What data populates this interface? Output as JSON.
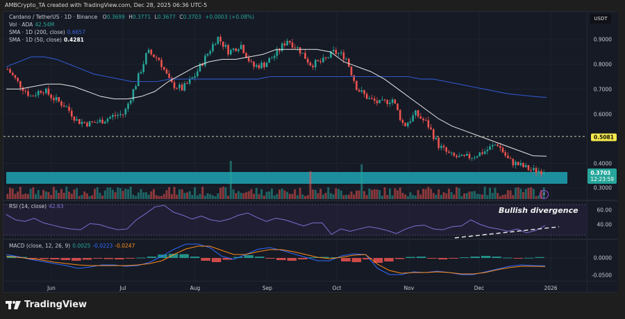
{
  "header": {
    "created_by": "AMBCrypto_TA created with TradingView.com, Dec 28, 2025 06:36 UTC-5"
  },
  "symbol": {
    "title": "Cardano / TetherUS · 1D · Binance",
    "open_label": "O",
    "open": "0.3699",
    "high_label": "H",
    "high": "0.3771",
    "low_label": "L",
    "low": "0.3677",
    "close_label": "C",
    "close": "0.3703",
    "change": "+0.0003 (+0.08%)"
  },
  "indicators": {
    "volume": {
      "label": "Vol · ADA",
      "value": "42.54M"
    },
    "sma200": {
      "label": "SMA · 1D (200, close)",
      "value": "0.6657",
      "color": "#2f57c9"
    },
    "sma50": {
      "label": "SMA · 1D (50, close)",
      "value": "0.4281",
      "color": "#e8e8e8"
    },
    "rsi": {
      "label": "RSI (14, close)",
      "value": "42.63",
      "color": "#7e6fd3"
    },
    "macd": {
      "label": "MACD (close, 12, 26, 9)",
      "hist": "0.0025",
      "macd": "-0.0223",
      "signal": "-0.0247"
    }
  },
  "price_axis": {
    "currency": "USDT",
    "ticks": [
      "0.9000",
      "0.8000",
      "0.7000",
      "0.6000",
      "0.4000",
      "0.3000"
    ],
    "level_tag": "0.5081",
    "last_price": "0.3703",
    "countdown": "12:23:59"
  },
  "rsi_axis": {
    "ticks": [
      "60.00",
      "40.00"
    ]
  },
  "macd_axis": {
    "ticks": [
      "0.0000",
      "-0.0500"
    ]
  },
  "time_axis": {
    "ticks": [
      "Jun",
      "Jul",
      "Aug",
      "Sep",
      "Oct",
      "Nov",
      "Dec",
      "2026"
    ]
  },
  "annotation": "Bullish divergence",
  "branding": "TradingView",
  "colors": {
    "up": "#26a69a",
    "down": "#ef5350",
    "background": "#161a25",
    "support_zone": "#1e9bab",
    "level_line": "#c9c9a0",
    "tag_yellow": "#f5e94b"
  },
  "chart_data": [
    {
      "type": "candlestick",
      "title": "Cardano / TetherUS · 1D · Binance",
      "xlabel": "",
      "ylabel": "USDT",
      "x_ticks": [
        "Jun",
        "Jul",
        "Aug",
        "Sep",
        "Oct",
        "Nov",
        "Dec",
        "2026"
      ],
      "ylim": [
        0.28,
        0.98
      ],
      "close_approx_weekly": [
        0.78,
        0.72,
        0.67,
        0.7,
        0.66,
        0.63,
        0.57,
        0.56,
        0.57,
        0.59,
        0.6,
        0.72,
        0.85,
        0.82,
        0.72,
        0.7,
        0.75,
        0.83,
        0.91,
        0.85,
        0.88,
        0.79,
        0.8,
        0.84,
        0.9,
        0.86,
        0.8,
        0.81,
        0.85,
        0.83,
        0.7,
        0.66,
        0.64,
        0.66,
        0.55,
        0.6,
        0.56,
        0.47,
        0.43,
        0.42,
        0.43,
        0.45,
        0.48,
        0.41,
        0.39,
        0.37,
        0.37
      ],
      "sma200_weekly": [
        0.79,
        0.81,
        0.83,
        0.83,
        0.82,
        0.8,
        0.78,
        0.76,
        0.75,
        0.74,
        0.73,
        0.73,
        0.73,
        0.74,
        0.74,
        0.74,
        0.74,
        0.74,
        0.74,
        0.74,
        0.74,
        0.75,
        0.75,
        0.75,
        0.75,
        0.75,
        0.75,
        0.75,
        0.75,
        0.75,
        0.75,
        0.75,
        0.75,
        0.74,
        0.74,
        0.73,
        0.72,
        0.71,
        0.7,
        0.69,
        0.68,
        0.675,
        0.67,
        0.6657
      ],
      "sma50_weekly": [
        0.7,
        0.7,
        0.71,
        0.72,
        0.72,
        0.71,
        0.69,
        0.67,
        0.66,
        0.66,
        0.67,
        0.69,
        0.73,
        0.76,
        0.79,
        0.81,
        0.82,
        0.82,
        0.83,
        0.84,
        0.86,
        0.86,
        0.86,
        0.86,
        0.85,
        0.81,
        0.79,
        0.77,
        0.74,
        0.7,
        0.66,
        0.62,
        0.58,
        0.55,
        0.53,
        0.51,
        0.49,
        0.47,
        0.45,
        0.43,
        0.4281
      ],
      "horizontal_level": 0.5081,
      "support_zone": [
        0.335,
        0.36
      ],
      "last_price": 0.3703
    },
    {
      "type": "line",
      "title": "RSI (14, close)",
      "ylim": [
        25,
        70
      ],
      "bands": [
        70,
        30
      ],
      "values": [
        57,
        50,
        48,
        52,
        46,
        43,
        40,
        38,
        37,
        45,
        44,
        40,
        37,
        38,
        50,
        58,
        67,
        69,
        60,
        56,
        51,
        55,
        50,
        48,
        51,
        56,
        59,
        53,
        48,
        52,
        50,
        46,
        42,
        46,
        46,
        31,
        38,
        35,
        38,
        41,
        39,
        36,
        32,
        38,
        42,
        43,
        38,
        37,
        41,
        42,
        50,
        44,
        40,
        38,
        35,
        38,
        33,
        36,
        42.63
      ],
      "annotation": "Bullish divergence",
      "divergence_line": [
        [
          650,
          342
        ],
        [
          800,
          326
        ]
      ]
    },
    {
      "type": "bar+line",
      "title": "MACD (close, 12, 26, 9)",
      "ylim": [
        -0.07,
        0.03
      ],
      "histogram": [
        0.006,
        0.003,
        -0.002,
        -0.003,
        -0.004,
        -0.006,
        -0.008,
        -0.005,
        -0.002,
        -0.003,
        -0.004,
        -0.002,
        0.001,
        0.004,
        0.01,
        0.012,
        0.011,
        0.004,
        -0.008,
        -0.012,
        -0.005,
        0.003,
        0.008,
        0.004,
        -0.002,
        -0.006,
        -0.008,
        -0.004,
        0.002,
        0.003,
        0.002,
        -0.01,
        -0.012,
        -0.004,
        -0.014,
        -0.01,
        -0.003,
        0.003,
        0.004,
        -0.002,
        -0.004,
        -0.002,
        0.002,
        0.004,
        0.006,
        0.004,
        0.001,
        -0.001,
        0.0005,
        0.0025
      ],
      "macd_line": [
        0.01,
        0.004,
        -0.004,
        -0.01,
        -0.016,
        -0.022,
        -0.03,
        -0.026,
        -0.02,
        -0.02,
        -0.024,
        -0.022,
        -0.012,
        0.005,
        0.025,
        0.04,
        0.04,
        0.03,
        0.005,
        -0.004,
        0.01,
        0.025,
        0.03,
        0.022,
        0.012,
        0.002,
        -0.008,
        -0.008,
        0.006,
        0.012,
        0.01,
        -0.03,
        -0.048,
        -0.048,
        -0.04,
        -0.042,
        -0.038,
        -0.042,
        -0.048,
        -0.048,
        -0.04,
        -0.032,
        -0.024,
        -0.02,
        -0.022,
        -0.0223
      ],
      "signal_line": [
        0.005,
        0.002,
        -0.002,
        -0.006,
        -0.012,
        -0.016,
        -0.02,
        -0.022,
        -0.022,
        -0.022,
        -0.022,
        -0.02,
        -0.016,
        -0.008,
        0.01,
        0.026,
        0.034,
        0.034,
        0.022,
        0.01,
        0.01,
        0.018,
        0.024,
        0.024,
        0.018,
        0.01,
        0.002,
        -0.002,
        0.002,
        0.008,
        0.01,
        -0.018,
        -0.036,
        -0.044,
        -0.042,
        -0.042,
        -0.04,
        -0.042,
        -0.046,
        -0.046,
        -0.042,
        -0.034,
        -0.028,
        -0.024,
        -0.024,
        -0.0247
      ]
    }
  ]
}
